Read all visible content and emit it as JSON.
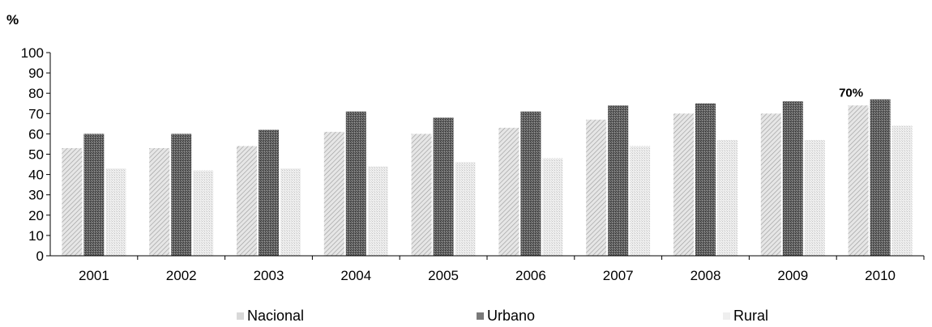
{
  "chart_data": {
    "type": "bar",
    "ylabel": "%",
    "ylim": [
      0,
      100
    ],
    "yticks": [
      "0",
      "10",
      "20",
      "30",
      "40",
      "50",
      "60",
      "70",
      "80",
      "90",
      "100"
    ],
    "categories": [
      "2001",
      "2002",
      "2003",
      "2004",
      "2005",
      "2006",
      "2007",
      "2008",
      "2009",
      "2010"
    ],
    "series": [
      {
        "name": "Nacional",
        "values": [
          53,
          53,
          54,
          61,
          60,
          63,
          67,
          70,
          70,
          74
        ]
      },
      {
        "name": "Urbano",
        "values": [
          60,
          60,
          62,
          71,
          68,
          71,
          74,
          75,
          76,
          77
        ]
      },
      {
        "name": "Rural",
        "values": [
          43,
          42,
          43,
          44,
          46,
          48,
          54,
          57,
          57,
          64
        ]
      }
    ],
    "annotations": [
      {
        "text": "70%",
        "category": "2010"
      }
    ],
    "grid": false,
    "legend_position": "bottom"
  },
  "colors": {
    "nacional": "#c8c8c8",
    "urbano": "#5a5a5a",
    "rural": "#e4e4e4",
    "axis": "#000000"
  }
}
